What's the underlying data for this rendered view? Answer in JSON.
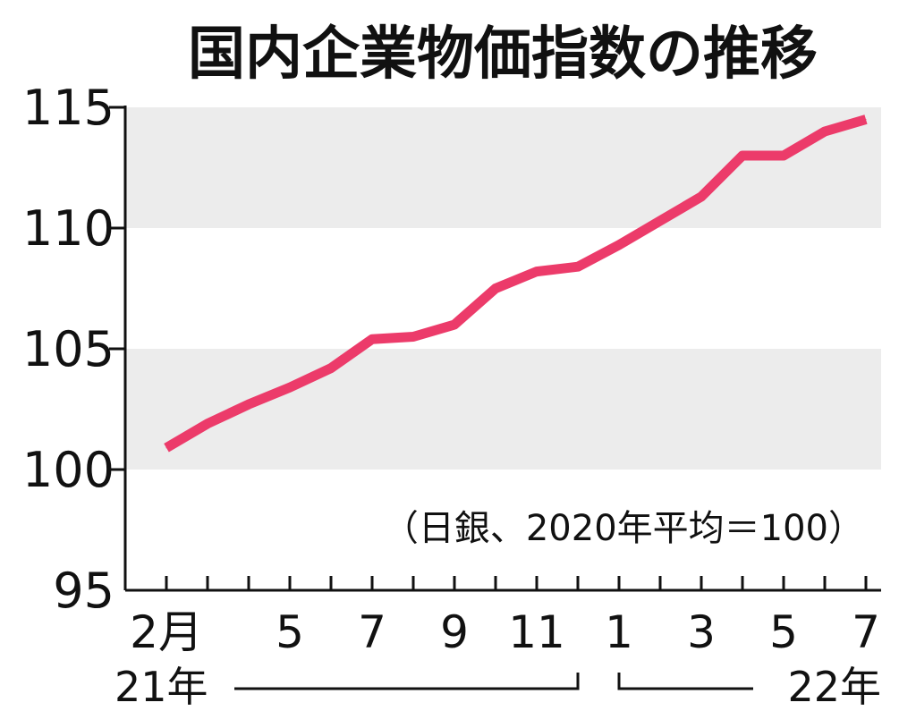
{
  "chart_data": {
    "type": "line",
    "title": "国内企業物価指数の推移",
    "note": "（日銀、2020年平均＝100）",
    "ylim": [
      95,
      115
    ],
    "yticks": [
      "95",
      "100",
      "105",
      "110",
      "115"
    ],
    "shaded_bands": [
      [
        100,
        105
      ],
      [
        110,
        115
      ]
    ],
    "band_color": "#ececec",
    "line_color": "#ec3b6a",
    "x": [
      "2021-02",
      "2021-03",
      "2021-04",
      "2021-05",
      "2021-06",
      "2021-07",
      "2021-08",
      "2021-09",
      "2021-10",
      "2021-11",
      "2021-12",
      "2022-01",
      "2022-02",
      "2022-03",
      "2022-04",
      "2022-05",
      "2022-06",
      "2022-07"
    ],
    "x_tick_labels": [
      {
        "month": "2021-02",
        "label": "2月"
      },
      {
        "month": "2021-05",
        "label": "5"
      },
      {
        "month": "2021-07",
        "label": "7"
      },
      {
        "month": "2021-09",
        "label": "9"
      },
      {
        "month": "2021-11",
        "label": "11"
      },
      {
        "month": "2022-01",
        "label": "1"
      },
      {
        "month": "2022-03",
        "label": "3"
      },
      {
        "month": "2022-05",
        "label": "5"
      },
      {
        "month": "2022-07",
        "label": "7"
      }
    ],
    "year_labels": [
      {
        "label": "21年",
        "from": "2021-02",
        "to": "2021-12"
      },
      {
        "label": "22年",
        "from": "2022-01",
        "to": "2022-07"
      }
    ],
    "series": [
      {
        "values": [
          100.9,
          101.9,
          102.7,
          103.4,
          104.2,
          105.4,
          105.5,
          106.0,
          107.5,
          108.2,
          108.4,
          109.3,
          110.3,
          111.3,
          113.0,
          113.0,
          114.0,
          114.5
        ]
      }
    ]
  }
}
